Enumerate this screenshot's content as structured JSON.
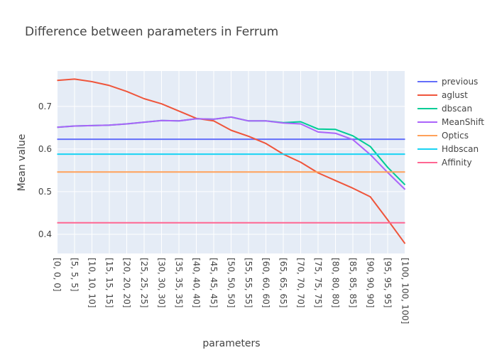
{
  "chart_data": {
    "type": "line",
    "title": "Difference between parameters in Ferrum",
    "xlabel": "parameters",
    "ylabel": "Mean value",
    "categories": [
      "[0, 0, 0]",
      "[5, 5, 5]",
      "[10, 10, 10]",
      "[15, 15, 15]",
      "[20, 20, 20]",
      "[25, 25, 25]",
      "[30, 30, 30]",
      "[35, 35, 35]",
      "[40, 40, 40]",
      "[45, 45, 45]",
      "[50, 50, 50]",
      "[55, 55, 55]",
      "[60, 60, 60]",
      "[65, 65, 65]",
      "[70, 70, 70]",
      "[75, 75, 75]",
      "[80, 80, 80]",
      "[85, 85, 85]",
      "[90, 90, 90]",
      "[95, 95, 95]",
      "[100, 100, 100]"
    ],
    "yticks": [
      0.4,
      0.5,
      0.6,
      0.7
    ],
    "ylim": [
      0.355,
      0.783
    ],
    "grid": true,
    "legend_position": "top-right",
    "series": [
      {
        "name": "previous",
        "color": "#636efa",
        "values": [
          0.623,
          0.623,
          0.623,
          0.623,
          0.623,
          0.623,
          0.623,
          0.623,
          0.623,
          0.623,
          0.623,
          0.623,
          0.623,
          0.623,
          0.623,
          0.623,
          0.623,
          0.623,
          0.623,
          0.623,
          0.623
        ]
      },
      {
        "name": "aglust",
        "color": "#ef553b",
        "values": [
          0.761,
          0.764,
          0.758,
          0.749,
          0.735,
          0.718,
          0.706,
          0.689,
          0.672,
          0.666,
          0.644,
          0.63,
          0.613,
          0.588,
          0.569,
          0.544,
          0.526,
          0.508,
          0.488,
          0.434,
          0.378
        ]
      },
      {
        "name": "dbscan",
        "color": "#00cc96",
        "values": [
          0.651,
          0.654,
          0.655,
          0.656,
          0.659,
          0.663,
          0.667,
          0.666,
          0.671,
          0.67,
          0.675,
          0.666,
          0.666,
          0.662,
          0.664,
          0.647,
          0.646,
          0.631,
          0.606,
          0.557,
          0.516
        ]
      },
      {
        "name": "MeanShift",
        "color": "#ab63fa",
        "values": [
          0.651,
          0.654,
          0.655,
          0.656,
          0.659,
          0.663,
          0.667,
          0.666,
          0.671,
          0.67,
          0.675,
          0.666,
          0.666,
          0.661,
          0.659,
          0.64,
          0.637,
          0.622,
          0.587,
          0.545,
          0.505
        ]
      },
      {
        "name": "Optics",
        "color": "#ffa15a",
        "values": [
          0.546,
          0.546,
          0.546,
          0.546,
          0.546,
          0.546,
          0.546,
          0.546,
          0.546,
          0.546,
          0.546,
          0.546,
          0.546,
          0.546,
          0.546,
          0.546,
          0.546,
          0.546,
          0.546,
          0.546,
          0.546
        ]
      },
      {
        "name": "Hdbscan",
        "color": "#19d3f3",
        "values": [
          0.588,
          0.588,
          0.588,
          0.588,
          0.588,
          0.588,
          0.588,
          0.588,
          0.588,
          0.588,
          0.588,
          0.588,
          0.588,
          0.588,
          0.588,
          0.588,
          0.588,
          0.588,
          0.588,
          0.588,
          0.588
        ]
      },
      {
        "name": "Affinity",
        "color": "#ff6692",
        "values": [
          0.427,
          0.427,
          0.427,
          0.427,
          0.427,
          0.427,
          0.427,
          0.427,
          0.427,
          0.427,
          0.427,
          0.427,
          0.427,
          0.427,
          0.427,
          0.427,
          0.427,
          0.427,
          0.427,
          0.427,
          0.427
        ]
      }
    ]
  }
}
